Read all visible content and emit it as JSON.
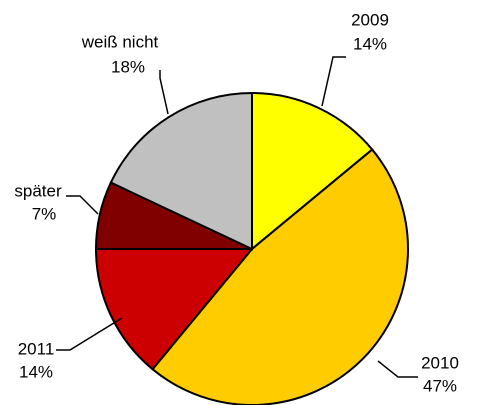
{
  "chart_data": {
    "type": "pie",
    "categories": [
      "2009",
      "2010",
      "2011",
      "später",
      "weiß nicht"
    ],
    "values": [
      14,
      47,
      14,
      7,
      18
    ],
    "value_labels": [
      "14%",
      "47%",
      "14%",
      "7%",
      "18%"
    ],
    "colors": [
      "#ffff00",
      "#ffcc00",
      "#cc0000",
      "#800000",
      "#c0c0c0"
    ]
  }
}
